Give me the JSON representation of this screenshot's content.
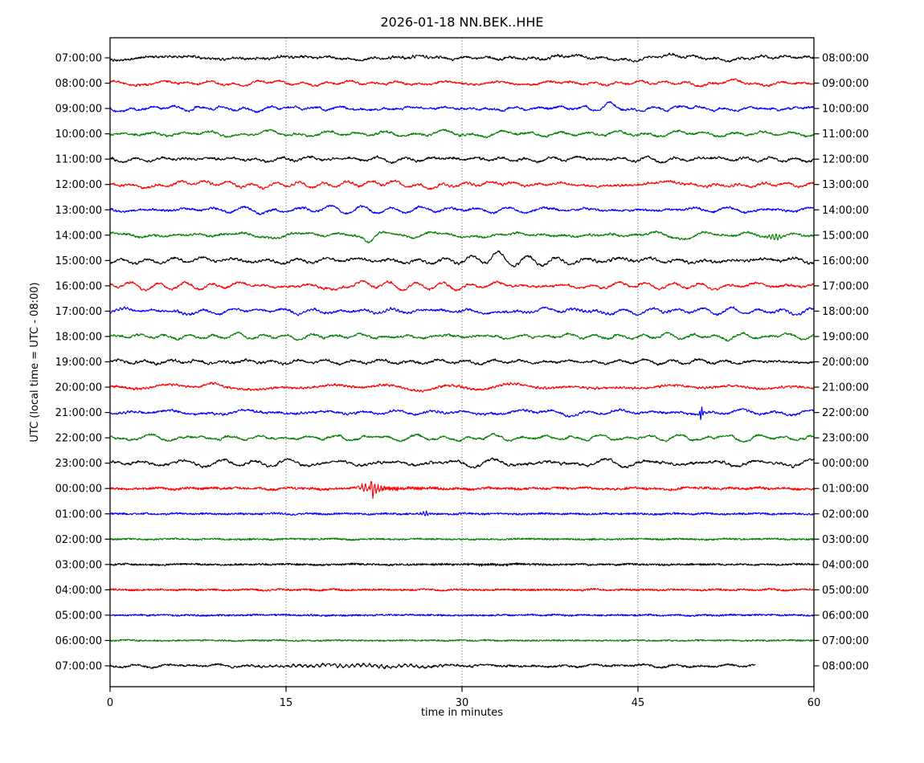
{
  "chart_data": {
    "type": "line",
    "subtype": "helicorder_dayplot",
    "title": "2026-01-18 NN.BEK..HHE",
    "xlabel": "time in minutes",
    "ylabel": "UTC (local time = UTC - 08:00)",
    "xlim": [
      0,
      60
    ],
    "x_ticks": [
      0,
      15,
      30,
      45,
      60
    ],
    "grid_minutes": [
      15,
      30,
      45
    ],
    "grid_style": "dotted-vertical",
    "legend": "none",
    "trace_color_cycle": [
      "#000000",
      "#ff0000",
      "#0000ff",
      "#008000"
    ],
    "rows": [
      {
        "left": "07:00:00",
        "right": "08:00:00",
        "color": "#000000",
        "smooth": 2.3,
        "jitter": 1.0,
        "end": 60,
        "events": []
      },
      {
        "left": "08:00:00",
        "right": "09:00:00",
        "color": "#ff0000",
        "smooth": 2.2,
        "jitter": 1.0,
        "end": 60,
        "events": []
      },
      {
        "left": "09:00:00",
        "right": "10:00:00",
        "color": "#0000ff",
        "smooth": 2.2,
        "jitter": 1.0,
        "end": 60,
        "events": [
          {
            "kind": "bump",
            "t": 42.7,
            "amp": 8,
            "w": 0.55
          }
        ]
      },
      {
        "left": "10:00:00",
        "right": "11:00:00",
        "color": "#008000",
        "smooth": 2.3,
        "jitter": 1.0,
        "end": 60,
        "events": []
      },
      {
        "left": "11:00:00",
        "right": "12:00:00",
        "color": "#000000",
        "smooth": 2.3,
        "jitter": 1.0,
        "end": 60,
        "events": []
      },
      {
        "left": "12:00:00",
        "right": "13:00:00",
        "color": "#ff0000",
        "smooth": 2.9,
        "jitter": 1.0,
        "end": 60,
        "events": []
      },
      {
        "left": "13:00:00",
        "right": "14:00:00",
        "color": "#0000ff",
        "smooth": 2.8,
        "jitter": 1.0,
        "end": 60,
        "events": [
          {
            "kind": "dip",
            "t": 14.5,
            "amp": 4,
            "w": 0.5
          }
        ]
      },
      {
        "left": "14:00:00",
        "right": "15:00:00",
        "color": "#008000",
        "smooth": 2.8,
        "jitter": 1.0,
        "end": 60,
        "events": [
          {
            "kind": "dip",
            "t": 22.1,
            "amp": 5.5,
            "w": 0.3
          },
          {
            "kind": "spike",
            "t": 56.7,
            "amp": 4,
            "p": 0.3,
            "d": 0.5
          }
        ]
      },
      {
        "left": "15:00:00",
        "right": "16:00:00",
        "color": "#000000",
        "smooth": 3.4,
        "jitter": 1.0,
        "end": 60,
        "events": [
          {
            "kind": "bump",
            "t": 32.9,
            "amp": 6,
            "w": 0.45
          }
        ]
      },
      {
        "left": "16:00:00",
        "right": "17:00:00",
        "color": "#ff0000",
        "smooth": 2.9,
        "jitter": 1.0,
        "end": 60,
        "events": [
          {
            "kind": "dip",
            "t": 19.2,
            "amp": 7,
            "w": 0.4
          }
        ]
      },
      {
        "left": "17:00:00",
        "right": "18:00:00",
        "color": "#0000ff",
        "smooth": 2.8,
        "jitter": 1.0,
        "end": 60,
        "events": []
      },
      {
        "left": "18:00:00",
        "right": "19:00:00",
        "color": "#008000",
        "smooth": 2.5,
        "jitter": 1.0,
        "end": 60,
        "events": []
      },
      {
        "left": "19:00:00",
        "right": "20:00:00",
        "color": "#000000",
        "smooth": 2.3,
        "jitter": 1.0,
        "end": 60,
        "events": []
      },
      {
        "left": "20:00:00",
        "right": "21:00:00",
        "color": "#ff0000",
        "smooth": 2.5,
        "jitter": 1.0,
        "end": 60,
        "events": [
          {
            "kind": "bump",
            "t": 8.7,
            "amp": 4.5,
            "w": 0.5
          }
        ]
      },
      {
        "left": "21:00:00",
        "right": "22:00:00",
        "color": "#0000ff",
        "smooth": 2.3,
        "jitter": 1.0,
        "end": 60,
        "events": [
          {
            "kind": "spike",
            "t": 50.4,
            "amp": 9,
            "p": 0.2,
            "d": 0.15
          }
        ]
      },
      {
        "left": "22:00:00",
        "right": "23:00:00",
        "color": "#008000",
        "smooth": 2.8,
        "jitter": 1.0,
        "end": 60,
        "events": [
          {
            "kind": "dip",
            "t": 29.8,
            "amp": 4,
            "w": 0.5
          }
        ]
      },
      {
        "left": "23:00:00",
        "right": "00:00:00",
        "color": "#000000",
        "smooth": 3.2,
        "jitter": 1.0,
        "end": 60,
        "events": []
      },
      {
        "left": "00:00:00",
        "right": "01:00:00",
        "color": "#ff0000",
        "smooth": 0.9,
        "jitter": 1.3,
        "end": 60,
        "events": [
          {
            "kind": "spike",
            "t": 21.7,
            "amp": 5,
            "p": 0.3,
            "d": 0.45
          },
          {
            "kind": "burst",
            "t": 22.2,
            "amp": 14,
            "p": 0.28,
            "d": 0.5,
            "coda": 5
          }
        ]
      },
      {
        "left": "01:00:00",
        "right": "02:00:00",
        "color": "#0000ff",
        "smooth": 0.5,
        "jitter": 1.1,
        "end": 60,
        "events": [
          {
            "kind": "spike",
            "t": 26.9,
            "amp": 3,
            "p": 0.25,
            "d": 0.3
          }
        ]
      },
      {
        "left": "02:00:00",
        "right": "03:00:00",
        "color": "#008000",
        "smooth": 0.45,
        "jitter": 1.0,
        "end": 60,
        "events": []
      },
      {
        "left": "03:00:00",
        "right": "04:00:00",
        "color": "#000000",
        "smooth": 0.5,
        "jitter": 1.1,
        "end": 60,
        "events": [
          {
            "kind": "tremor",
            "t": 33,
            "amp": 0.7,
            "w": 4,
            "p": 0.1
          }
        ]
      },
      {
        "left": "04:00:00",
        "right": "05:00:00",
        "color": "#ff0000",
        "smooth": 0.5,
        "jitter": 1.1,
        "end": 60,
        "events": []
      },
      {
        "left": "05:00:00",
        "right": "06:00:00",
        "color": "#0000ff",
        "smooth": 0.45,
        "jitter": 1.0,
        "end": 60,
        "events": []
      },
      {
        "left": "06:00:00",
        "right": "07:00:00",
        "color": "#008000",
        "smooth": 0.4,
        "jitter": 0.9,
        "end": 60,
        "events": []
      },
      {
        "left": "07:00:00",
        "right": "08:00:00",
        "color": "#000000",
        "smooth": 1.3,
        "jitter": 1.0,
        "end": 55,
        "events": [
          {
            "kind": "tremor",
            "t": 21,
            "amp": 1.6,
            "w": 6,
            "p": 0.5
          }
        ]
      }
    ]
  }
}
